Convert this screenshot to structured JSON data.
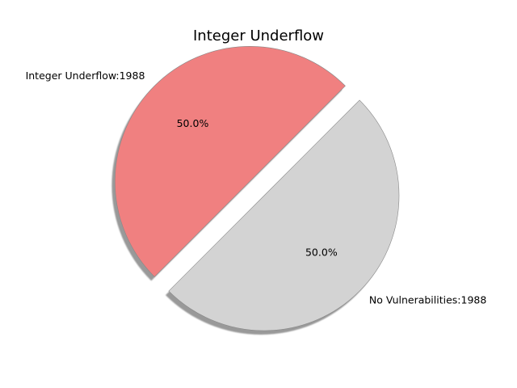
{
  "chart_data": {
    "type": "pie",
    "title": "Integer Underflow",
    "slices": [
      {
        "label": "Integer Underflow:1988",
        "value": 1988,
        "percent_label": "50.0%",
        "color": "#f08080",
        "exploded": true
      },
      {
        "label": "No Vulnerabilities:1988",
        "value": 1988,
        "percent_label": "50.0%",
        "color": "#d3d3d3",
        "exploded": false
      }
    ],
    "shadow": true,
    "start_angle_degrees": 45
  }
}
